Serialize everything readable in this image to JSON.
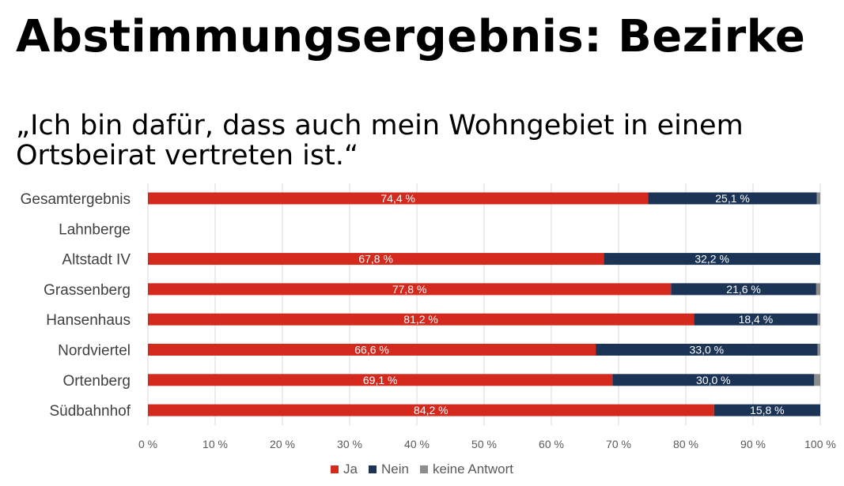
{
  "title": "Abstimmungsergebnis: Bezirke",
  "subtitle": "„Ich bin dafür, dass auch mein Wohngebiet in einem Ortsbeirat vertreten ist.“",
  "colors": {
    "ja": "#d42a1e",
    "nein": "#1b3456",
    "keine": "#8c8c8c",
    "grid": "#d9d9d9"
  },
  "chart_data": {
    "type": "bar",
    "orientation": "horizontal",
    "stacked": true,
    "categories": [
      "Gesamtergebnis",
      "Lahnberge",
      "Altstadt IV",
      "Grassenberg",
      "Hansenhaus",
      "Nordviertel",
      "Ortenberg",
      "Südbahnhof"
    ],
    "series": [
      {
        "name": "Ja",
        "values": [
          74.4,
          0,
          67.8,
          77.8,
          81.2,
          66.6,
          69.1,
          84.2
        ],
        "labels": [
          "74,4 %",
          "",
          "67,8 %",
          "77,8 %",
          "81,2 %",
          "66,6 %",
          "69,1 %",
          "84,2 %"
        ]
      },
      {
        "name": "Nein",
        "values": [
          25.1,
          0,
          32.2,
          21.6,
          18.4,
          33.0,
          30.0,
          15.8
        ],
        "labels": [
          "25,1 %",
          "",
          "32,2 %",
          "21,6 %",
          "18,4 %",
          "33,0 %",
          "30,0 %",
          "15,8 %"
        ]
      },
      {
        "name": "keine Antwort",
        "values": [
          0.5,
          0,
          0,
          0.6,
          0.4,
          0.4,
          0.9,
          0
        ],
        "labels": [
          "",
          "",
          "",
          "",
          "",
          "",
          "",
          ""
        ]
      }
    ],
    "xlim": [
      0,
      100
    ],
    "x_ticks": [
      "0 %",
      "10 %",
      "20 %",
      "30 %",
      "40 %",
      "50 %",
      "60 %",
      "70 %",
      "80 %",
      "90 %",
      "100 %"
    ],
    "grid": true,
    "legend_position": "bottom"
  }
}
